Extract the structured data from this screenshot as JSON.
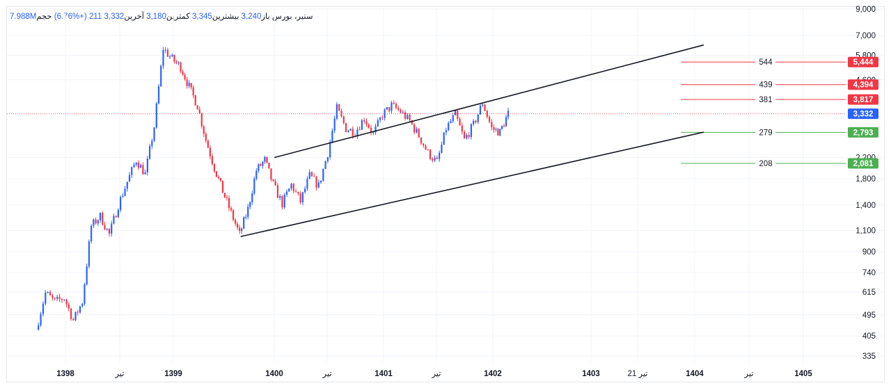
{
  "header": {
    "symbol": "سنیر، بورس",
    "open_label": "باز",
    "open_value": "3,240",
    "high_label": "بیشترین",
    "high_value": "3,345",
    "low_label": "کمترین",
    "low_value": "3,180",
    "close_label": "آخرین",
    "close_value": "3,332",
    "change_value": "211",
    "change_pct": "(+6.76%)",
    "volume_label": "حجم",
    "volume_value": "7.988M"
  },
  "chart_data": {
    "type": "candlestick",
    "y_scale": "log",
    "ylim": [
      310,
      9000
    ],
    "y_ticks": [
      "9,000",
      "7,000",
      "5,800",
      "4,600",
      "3,800",
      "3,332",
      "2,200",
      "1,800",
      "1,400",
      "1,100",
      "900",
      "740",
      "615",
      "495",
      "405",
      "335"
    ],
    "x_ticks": [
      "1398",
      "تیر",
      "1399",
      "1400",
      "تیر",
      "1401",
      "تیر",
      "1402",
      "1403",
      "21 تیر",
      "1404",
      "تیر",
      "1405"
    ],
    "price_path": [
      [
        "1397-10",
        430
      ],
      [
        "1397-11",
        610
      ],
      [
        "1397-12",
        560
      ],
      [
        "1398-01",
        580
      ],
      [
        "1398-02",
        470
      ],
      [
        "1398-03",
        560
      ],
      [
        "1398-04",
        1150
      ],
      [
        "1398-05",
        1260
      ],
      [
        "1398-06",
        1060
      ],
      [
        "1398-07",
        1400
      ],
      [
        "1398-08",
        1750
      ],
      [
        "1398-09",
        2150
      ],
      [
        "1398-10",
        1880
      ],
      [
        "1398-11",
        2950
      ],
      [
        "1398-12",
        6200
      ],
      [
        "1399-01",
        5600
      ],
      [
        "1399-02",
        5200
      ],
      [
        "1399-03",
        4300
      ],
      [
        "1399-04",
        3600
      ],
      [
        "1399-05",
        2600
      ],
      [
        "1399-06",
        2000
      ],
      [
        "1399-07",
        1600
      ],
      [
        "1399-08",
        1300
      ],
      [
        "1399-09",
        1060
      ],
      [
        "1399-10",
        1350
      ],
      [
        "1399-11",
        1950
      ],
      [
        "1399-12",
        2150
      ],
      [
        "1400-01",
        1700
      ],
      [
        "1400-02",
        1420
      ],
      [
        "1400-03",
        1700
      ],
      [
        "1400-04",
        1450
      ],
      [
        "1400-05",
        1850
      ],
      [
        "1400-06",
        1680
      ],
      [
        "1400-07",
        2300
      ],
      [
        "1400-08",
        3500
      ],
      [
        "1400-09",
        2900
      ],
      [
        "1400-10",
        2800
      ],
      [
        "1400-11",
        3200
      ],
      [
        "1400-12",
        2750
      ],
      [
        "1401-01",
        3300
      ],
      [
        "1401-02",
        3600
      ],
      [
        "1401-03",
        3400
      ],
      [
        "1401-04",
        3100
      ],
      [
        "1401-05",
        2700
      ],
      [
        "1401-06",
        2300
      ],
      [
        "1401-07",
        2100
      ],
      [
        "1401-08",
        2900
      ],
      [
        "1401-09",
        3300
      ],
      [
        "1401-10",
        2600
      ],
      [
        "1401-11",
        3000
      ],
      [
        "1401-12",
        3700
      ],
      [
        "1402-01",
        2900
      ],
      [
        "1402-02",
        2800
      ],
      [
        "1402-03",
        3332
      ]
    ],
    "last_price": 3332,
    "channel": {
      "upper": [
        [
          "1400-01",
          2200
        ],
        [
          "1404-02",
          6400
        ]
      ],
      "lower": [
        [
          "1399-09",
          1040
        ],
        [
          "1404-02",
          2800
        ]
      ]
    },
    "levels": [
      {
        "value": 5444,
        "label": "544",
        "tag": "5,444",
        "color": "#f23645"
      },
      {
        "value": 4394,
        "label": "439",
        "tag": "4,394",
        "color": "#f23645"
      },
      {
        "value": 3817,
        "label": "381",
        "tag": "3,817",
        "color": "#f23645"
      },
      {
        "value": 2793,
        "label": "279",
        "tag": "2,793",
        "color": "#4caf50"
      },
      {
        "value": 2081,
        "label": "208",
        "tag": "2,081",
        "color": "#4caf50"
      }
    ],
    "last_tag": {
      "value": 3332,
      "tag": "3,332",
      "color": "#2962ff"
    },
    "colors": {
      "up": "#2962ff",
      "down": "#f23645",
      "line": "#131722"
    }
  }
}
